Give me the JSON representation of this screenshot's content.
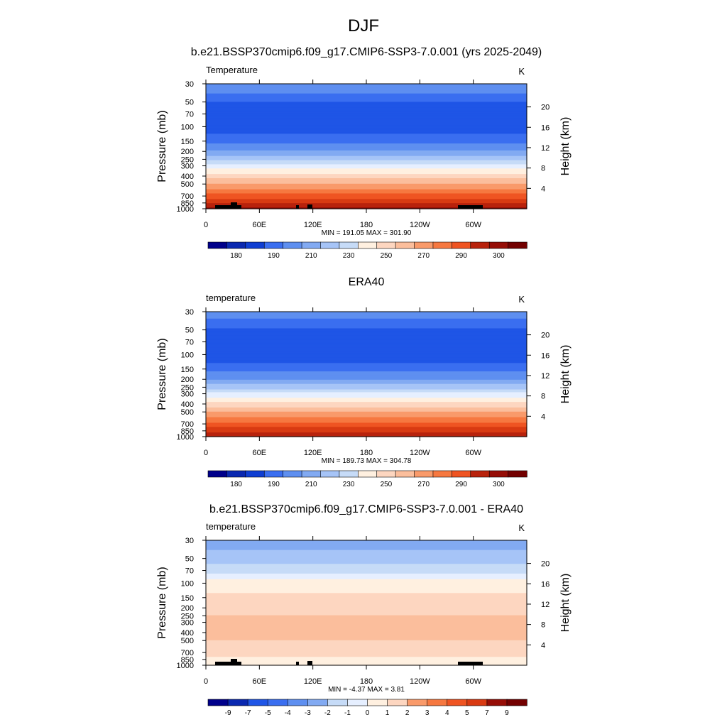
{
  "figure": {
    "title": "DJF"
  },
  "colors": {
    "abs_palette": [
      "#00008b",
      "#0a28b0",
      "#0f3ed2",
      "#1f55e6",
      "#3a6ef0",
      "#5e8ff0",
      "#82aaf2",
      "#a6c4f7",
      "#c6dbf7",
      "#e6efff",
      "#fff0e0",
      "#fdd6c0",
      "#fbbe9c",
      "#f99a6a",
      "#f67840",
      "#ef5422",
      "#d93a12",
      "#b8220c",
      "#960d06",
      "#730000"
    ],
    "diff_palette": [
      "#00008b",
      "#0a28b0",
      "#0f3ed2",
      "#1f55e6",
      "#3a6ef0",
      "#5e8ff0",
      "#82aaf2",
      "#a6c4f7",
      "#c6dbf7",
      "#e6efff",
      "#fff0e0",
      "#fdd6c0",
      "#fbbe9c",
      "#f99a6a",
      "#f67840",
      "#ef5422",
      "#d93a12",
      "#b8220c",
      "#960d06",
      "#730000"
    ],
    "topography": "#000000"
  },
  "chart_data": [
    {
      "type": "heatmap",
      "title": "b.e21.BSSP370cmip6.f09_g17.CMIP6-SSP3-7.0.001 (yrs 2025-2049)",
      "field_label": "Temperature",
      "units": "K",
      "ylabel": "Pressure (mb)",
      "ylabel_right": "Height (km)",
      "x_ticks": [
        "0",
        "60E",
        "120E",
        "180",
        "120W",
        "60W"
      ],
      "y_ticks": [
        "30",
        "50",
        "70",
        "100",
        "150",
        "200",
        "250",
        "300",
        "400",
        "500",
        "700",
        "850",
        "1000"
      ],
      "y_ticks_right": [
        "20",
        "16",
        "12",
        "8",
        "4"
      ],
      "stats": "MIN = 191.05  MAX = 301.90",
      "min": 191.05,
      "max": 301.9,
      "colorbar_labels": [
        "180",
        "190",
        "210",
        "230",
        "250",
        "270",
        "290",
        "300"
      ],
      "profile": [
        {
          "p": 30,
          "t": 212
        },
        {
          "p": 40,
          "t": 207
        },
        {
          "p": 50,
          "t": 201
        },
        {
          "p": 70,
          "t": 198
        },
        {
          "p": 100,
          "t": 197
        },
        {
          "p": 150,
          "t": 206
        },
        {
          "p": 200,
          "t": 215
        },
        {
          "p": 250,
          "t": 225
        },
        {
          "p": 300,
          "t": 236
        },
        {
          "p": 400,
          "t": 250
        },
        {
          "p": 500,
          "t": 260
        },
        {
          "p": 700,
          "t": 275
        },
        {
          "p": 850,
          "t": 285
        },
        {
          "p": 1000,
          "t": 294
        }
      ]
    },
    {
      "type": "heatmap",
      "title": "ERA40",
      "field_label": "temperature",
      "units": "K",
      "ylabel": "Pressure (mb)",
      "ylabel_right": "Height (km)",
      "x_ticks": [
        "0",
        "60E",
        "120E",
        "180",
        "120W",
        "60W"
      ],
      "y_ticks": [
        "30",
        "50",
        "70",
        "100",
        "150",
        "200",
        "250",
        "300",
        "400",
        "500",
        "700",
        "850",
        "1000"
      ],
      "y_ticks_right": [
        "20",
        "16",
        "12",
        "8",
        "4"
      ],
      "stats": "MIN = 189.73  MAX = 304.78",
      "min": 189.73,
      "max": 304.78,
      "colorbar_labels": [
        "180",
        "190",
        "210",
        "230",
        "250",
        "270",
        "290",
        "300"
      ],
      "profile": [
        {
          "p": 30,
          "t": 211
        },
        {
          "p": 40,
          "t": 206
        },
        {
          "p": 50,
          "t": 200
        },
        {
          "p": 70,
          "t": 197
        },
        {
          "p": 100,
          "t": 196
        },
        {
          "p": 150,
          "t": 205
        },
        {
          "p": 200,
          "t": 214
        },
        {
          "p": 250,
          "t": 224
        },
        {
          "p": 300,
          "t": 235
        },
        {
          "p": 400,
          "t": 249
        },
        {
          "p": 500,
          "t": 259
        },
        {
          "p": 700,
          "t": 274
        },
        {
          "p": 850,
          "t": 284
        },
        {
          "p": 1000,
          "t": 293
        }
      ]
    },
    {
      "type": "heatmap",
      "title": "b.e21.BSSP370cmip6.f09_g17.CMIP6-SSP3-7.0.001 - ERA40",
      "field_label": "temperature",
      "units": "K",
      "ylabel": "Pressure (mb)",
      "ylabel_right": "Height (km)",
      "x_ticks": [
        "0",
        "60E",
        "120E",
        "180",
        "120W",
        "60W"
      ],
      "y_ticks": [
        "30",
        "50",
        "70",
        "100",
        "150",
        "200",
        "250",
        "300",
        "400",
        "500",
        "700",
        "850",
        "1000"
      ],
      "y_ticks_right": [
        "20",
        "16",
        "12",
        "8",
        "4"
      ],
      "stats": "MIN =  -4.37  MAX =   3.81",
      "min": -4.37,
      "max": 3.81,
      "colorbar_labels": [
        "-9",
        "-7",
        "-5",
        "-4",
        "-3",
        "-2",
        "-1",
        "0",
        "1",
        "2",
        "3",
        "4",
        "5",
        "7",
        "9"
      ],
      "profile": [
        {
          "p": 30,
          "t": -3.5
        },
        {
          "p": 40,
          "t": -3.0
        },
        {
          "p": 50,
          "t": -2.5
        },
        {
          "p": 70,
          "t": -1.5
        },
        {
          "p": 100,
          "t": 0.6
        },
        {
          "p": 150,
          "t": 1.2
        },
        {
          "p": 200,
          "t": 1.6
        },
        {
          "p": 250,
          "t": 2.0
        },
        {
          "p": 300,
          "t": 2.4
        },
        {
          "p": 400,
          "t": 2.6
        },
        {
          "p": 500,
          "t": 2.0
        },
        {
          "p": 700,
          "t": 1.3
        },
        {
          "p": 850,
          "t": 0.8
        },
        {
          "p": 1000,
          "t": 0.3
        }
      ]
    }
  ]
}
